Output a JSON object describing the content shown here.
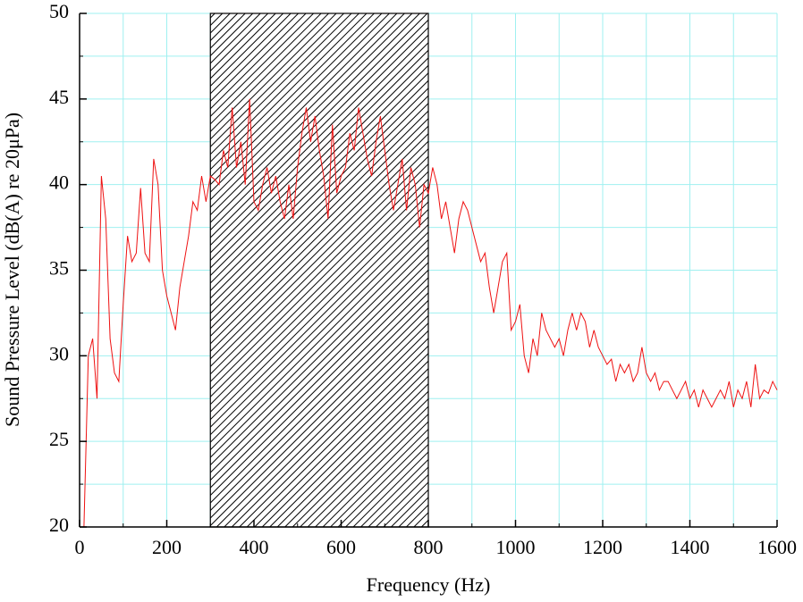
{
  "chart_data": {
    "type": "line",
    "x_label": "Frequency (Hz)",
    "y_label": "Sound Pressure Level (dB(A) re 20μPa)",
    "xlim": [
      0,
      1600
    ],
    "xticks": [
      0,
      200,
      400,
      600,
      800,
      1000,
      1200,
      1400,
      1600
    ],
    "xminorticks": [
      100,
      300,
      500,
      700,
      900,
      1100,
      1300,
      1500
    ],
    "ylim": [
      20,
      50
    ],
    "yticks": [
      20,
      25,
      30,
      35,
      40,
      45,
      50
    ],
    "yminorticks": [
      22.5,
      27.5,
      32.5,
      37.5,
      42.5,
      47.5
    ],
    "grid": true,
    "grid_color": "#9ff0f0",
    "highlight": {
      "xlim": [
        300,
        800
      ],
      "pattern": "hatch"
    },
    "x": [
      10,
      20,
      30,
      40,
      50,
      60,
      70,
      80,
      90,
      100,
      110,
      120,
      130,
      140,
      150,
      160,
      170,
      180,
      190,
      200,
      210,
      220,
      230,
      240,
      250,
      260,
      270,
      280,
      290,
      300,
      310,
      320,
      330,
      340,
      350,
      360,
      370,
      380,
      390,
      400,
      410,
      420,
      430,
      440,
      450,
      460,
      470,
      480,
      490,
      500,
      510,
      520,
      530,
      540,
      550,
      560,
      570,
      580,
      590,
      600,
      610,
      620,
      630,
      640,
      650,
      660,
      670,
      680,
      690,
      700,
      710,
      720,
      730,
      740,
      750,
      760,
      770,
      780,
      790,
      800,
      810,
      820,
      830,
      840,
      850,
      860,
      870,
      880,
      890,
      900,
      910,
      920,
      930,
      940,
      950,
      960,
      970,
      980,
      990,
      1000,
      1010,
      1020,
      1030,
      1040,
      1050,
      1060,
      1070,
      1080,
      1090,
      1100,
      1110,
      1120,
      1130,
      1140,
      1150,
      1160,
      1170,
      1180,
      1190,
      1200,
      1210,
      1220,
      1230,
      1240,
      1250,
      1260,
      1270,
      1280,
      1290,
      1300,
      1310,
      1320,
      1330,
      1340,
      1350,
      1360,
      1370,
      1380,
      1390,
      1400,
      1410,
      1420,
      1430,
      1440,
      1450,
      1460,
      1470,
      1480,
      1490,
      1500,
      1510,
      1520,
      1530,
      1540,
      1550,
      1560,
      1570,
      1580,
      1590,
      1600
    ],
    "series": [
      {
        "color": "#ee1111",
        "values": [
          20,
          30,
          31,
          27.5,
          40.5,
          38,
          31,
          29,
          28.5,
          33,
          37,
          35.5,
          36,
          39.8,
          36,
          35.5,
          41.5,
          40,
          35,
          33.5,
          32.5,
          31.5,
          34,
          35.5,
          37,
          39,
          38.5,
          40.5,
          39,
          40.5,
          40.3,
          40,
          42,
          41,
          44.5,
          41,
          42.5,
          40,
          45,
          39,
          38.5,
          40,
          41,
          39.5,
          40.5,
          39,
          38,
          40,
          38,
          41,
          43,
          44.5,
          42.5,
          44,
          42,
          40.5,
          38,
          43.5,
          39.5,
          40.5,
          41,
          43,
          42,
          44.5,
          43,
          41.5,
          40.5,
          42.5,
          44,
          42,
          40,
          38.5,
          40,
          41.5,
          38.5,
          41,
          40,
          37.5,
          40,
          39.5,
          41,
          40,
          38,
          39,
          37.5,
          36,
          38,
          39,
          38.5,
          37.5,
          36.5,
          35.5,
          36,
          34,
          32.5,
          34,
          35.5,
          36,
          31.5,
          32,
          33,
          30,
          29,
          31,
          30,
          32.5,
          31.5,
          31,
          30.5,
          31,
          30,
          31.5,
          32.5,
          31.5,
          32.5,
          32,
          30.5,
          31.5,
          30.5,
          30,
          29.5,
          29.8,
          28.5,
          29.5,
          29,
          29.5,
          28.5,
          29,
          30.5,
          29,
          28.5,
          29,
          28,
          28.5,
          28.5,
          28,
          27.5,
          28,
          28.5,
          27.5,
          28,
          27,
          28,
          27.5,
          27,
          27.5,
          28,
          27.5,
          28.5,
          27,
          28,
          27.5,
          28.5,
          27,
          29.5,
          27.5,
          28,
          27.8,
          28.5,
          28
        ]
      }
    ]
  }
}
